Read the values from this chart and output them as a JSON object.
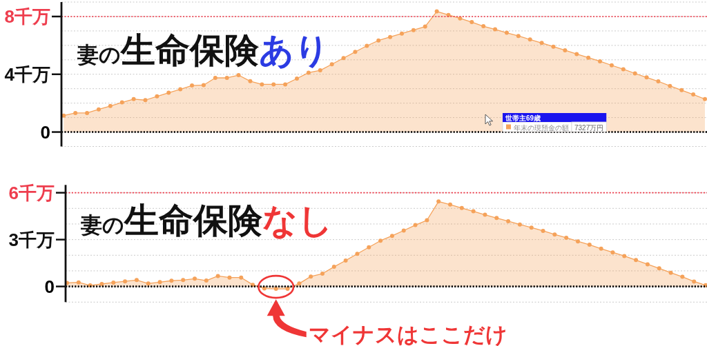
{
  "chart_data": [
    {
      "type": "area",
      "title": "妻の生命保険あり",
      "categories": [
        null,
        null,
        null,
        null,
        null,
        null,
        null,
        null,
        null,
        null,
        null,
        null,
        null,
        null,
        null,
        null,
        null,
        null,
        null,
        null,
        null,
        null,
        null,
        null,
        null,
        null,
        null,
        null,
        null,
        null,
        null,
        null,
        null,
        null,
        null,
        null,
        null,
        null,
        null,
        null,
        null,
        null,
        null,
        null,
        null,
        null,
        null,
        null,
        null,
        null,
        null,
        null,
        null,
        null,
        null,
        null
      ],
      "series": [
        {
          "name": "年末の現預金の額",
          "color": "#f5a25a",
          "values": [
            1.14,
            1.32,
            1.32,
            1.57,
            1.8,
            2.05,
            2.28,
            2.21,
            2.47,
            2.72,
            2.96,
            3.22,
            3.25,
            3.75,
            3.75,
            3.94,
            3.52,
            3.3,
            3.3,
            3.3,
            3.7,
            4.11,
            4.27,
            4.69,
            5.12,
            5.55,
            5.97,
            6.34,
            6.58,
            6.82,
            7.06,
            7.3,
            8.35,
            8.11,
            7.87,
            7.61,
            7.327,
            7.11,
            6.87,
            6.65,
            6.41,
            6.17,
            5.91,
            5.66,
            5.4,
            5.15,
            4.9,
            4.62,
            4.35,
            4.06,
            3.78,
            3.51,
            3.19,
            2.9,
            2.6,
            2.28
          ]
        }
      ],
      "ylim": [
        -1,
        9
      ],
      "yticks": [
        {
          "value": -1,
          "label": null
        },
        0,
        {
          "value": 1,
          "label": null
        },
        {
          "value": 2,
          "label": null
        },
        {
          "value": 3,
          "label": null
        },
        {
          "value": 4,
          "label": "4千万"
        },
        {
          "value": 5,
          "label": null
        },
        {
          "value": 6,
          "label": null
        },
        {
          "value": 7,
          "label": null
        },
        {
          "value": 8,
          "label": "8千万"
        },
        {
          "value": 9,
          "label": null
        }
      ],
      "ref_lines": [
        {
          "axis": "y",
          "value": 8,
          "color": "#ee3e4e",
          "line_style": "dotted"
        },
        {
          "axis": "y",
          "value": 0,
          "color": "#000000",
          "line_style": "dotted"
        }
      ],
      "grid": "y",
      "marker": "circle",
      "line_style": "solid",
      "tick_labels": "y",
      "legend": "bottom right",
      "annotations": [
        "世帯主69歳",
        "7327万円"
      ]
    },
    {
      "type": "area",
      "title": "妻の生命保険なし",
      "categories": [
        null,
        null,
        null,
        null,
        null,
        null,
        null,
        null,
        null,
        null,
        null,
        null,
        null,
        null,
        null,
        null,
        null,
        null,
        null,
        null,
        null,
        null,
        null,
        null,
        null,
        null,
        null,
        null,
        null,
        null,
        null,
        null,
        null,
        null,
        null,
        null,
        null,
        null,
        null,
        null,
        null,
        null,
        null,
        null,
        null,
        null,
        null,
        null,
        null,
        null,
        null,
        null,
        null,
        null,
        null,
        null
      ],
      "series": [
        {
          "color": "#f5a25a",
          "values": [
            0.23,
            0.26,
            0.07,
            0.16,
            0.25,
            0.33,
            0.41,
            0.19,
            0.28,
            0.37,
            0.41,
            0.5,
            0.38,
            0.67,
            0.57,
            0.57,
            0.11,
            -0.13,
            -0.15,
            -0.15,
            0.19,
            0.64,
            0.82,
            1.26,
            1.66,
            2.09,
            2.51,
            2.93,
            3.24,
            3.58,
            3.93,
            4.24,
            5.44,
            5.24,
            5.02,
            4.81,
            4.59,
            4.38,
            4.18,
            3.97,
            3.77,
            3.56,
            3.33,
            3.12,
            2.89,
            2.67,
            2.42,
            2.18,
            1.95,
            1.69,
            1.42,
            1.16,
            0.88,
            0.62,
            0.32,
            0.08
          ]
        }
      ],
      "ylim": [
        -1,
        6.5
      ],
      "yticks": [
        {
          "value": -1,
          "label": null
        },
        0,
        {
          "value": 1,
          "label": null
        },
        {
          "value": 2,
          "label": null
        },
        {
          "value": 3,
          "label": "3千万"
        },
        {
          "value": 4,
          "label": null
        },
        {
          "value": 5,
          "label": null
        },
        {
          "value": 6,
          "label": "6千万"
        }
      ],
      "ref_lines": [
        {
          "axis": "y",
          "value": 6,
          "color": "#ee3e4e",
          "line_style": "dotted"
        },
        {
          "axis": "y",
          "value": 0,
          "color": "#000000",
          "line_style": "dotted"
        }
      ],
      "grid": "y",
      "marker": "circle",
      "line_style": "solid",
      "tick_labels": "y",
      "annotations": [
        "マイナスはここだけ"
      ]
    }
  ]
}
